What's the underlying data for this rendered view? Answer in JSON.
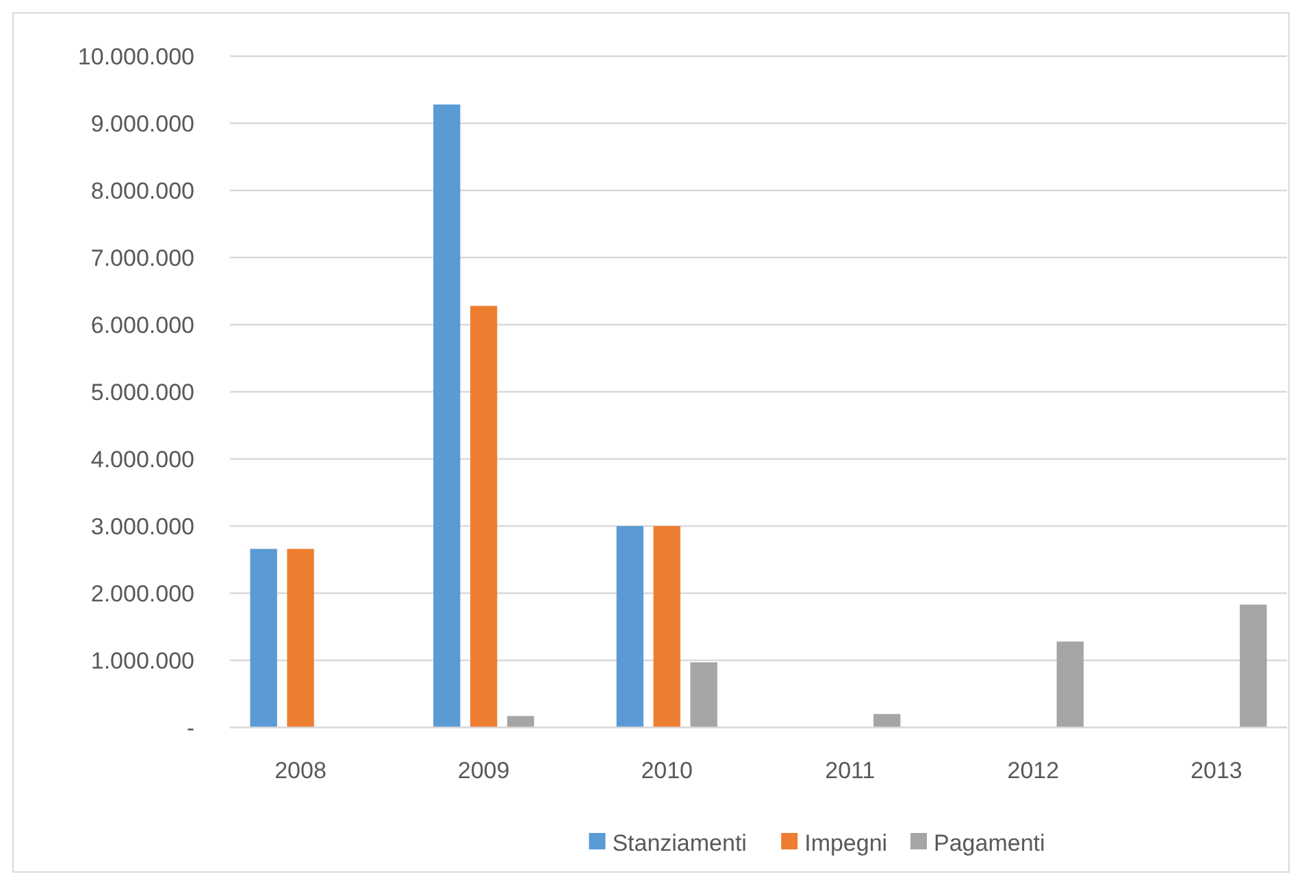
{
  "chart_data": {
    "type": "bar",
    "categories": [
      "2008",
      "2009",
      "2010",
      "2011",
      "2012",
      "2013"
    ],
    "series": [
      {
        "name": "Stanziamenti",
        "color": "#5b9bd5",
        "values": [
          2660000,
          9280000,
          3000000,
          null,
          null,
          null
        ]
      },
      {
        "name": "Impegni",
        "color": "#ed7d31",
        "values": [
          2660000,
          6280000,
          3000000,
          null,
          null,
          null
        ]
      },
      {
        "name": "Pagamenti",
        "color": "#a5a5a5",
        "values": [
          null,
          170000,
          970000,
          200000,
          1280000,
          1830000
        ]
      }
    ],
    "ylim": [
      0,
      10000000
    ],
    "yticks": [
      {
        "value": 0,
        "label": "-"
      },
      {
        "value": 1000000,
        "label": "1.000.000"
      },
      {
        "value": 2000000,
        "label": "2.000.000"
      },
      {
        "value": 3000000,
        "label": "3.000.000"
      },
      {
        "value": 4000000,
        "label": "4.000.000"
      },
      {
        "value": 5000000,
        "label": "5.000.000"
      },
      {
        "value": 6000000,
        "label": "6.000.000"
      },
      {
        "value": 7000000,
        "label": "7.000.000"
      },
      {
        "value": 8000000,
        "label": "8.000.000"
      },
      {
        "value": 9000000,
        "label": "9.000.000"
      },
      {
        "value": 10000000,
        "label": "10.000.000"
      }
    ],
    "grid": "y",
    "legend": "bottom"
  }
}
